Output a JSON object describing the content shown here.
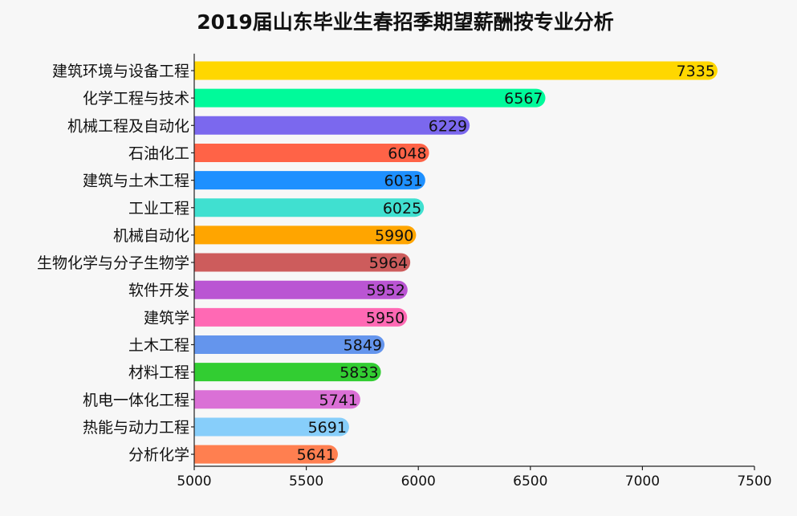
{
  "chart_data": {
    "type": "bar",
    "orientation": "horizontal",
    "title": "2019届山东毕业生春招季期望薪酬按专业分析",
    "xlabel": "",
    "ylabel": "",
    "xlim": [
      5000,
      7500
    ],
    "xticks": [
      5000,
      5500,
      6000,
      6500,
      7000,
      7500
    ],
    "grid": false,
    "legend": "none",
    "categories": [
      "建筑环境与设备工程",
      "化学工程与技术",
      "机械工程及自动化",
      "石油化工",
      "建筑与土木工程",
      "工业工程",
      "机械自动化",
      "生物化学与分子生物学",
      "软件开发",
      "建筑学",
      "土木工程",
      "材料工程",
      "机电一体化工程",
      "热能与动力工程",
      "分析化学"
    ],
    "values": [
      7335,
      6567,
      6229,
      6048,
      6031,
      6025,
      5990,
      5964,
      5952,
      5950,
      5849,
      5833,
      5741,
      5691,
      5641
    ],
    "colors": [
      "#ffd700",
      "#00fa9a",
      "#7b68ee",
      "#ff6347",
      "#1e90ff",
      "#40e0d0",
      "#ffa500",
      "#cd5c5c",
      "#ba55d3",
      "#ff69b4",
      "#6495ed",
      "#32cd32",
      "#da70d6",
      "#87cefa",
      "#ff7f50"
    ]
  }
}
